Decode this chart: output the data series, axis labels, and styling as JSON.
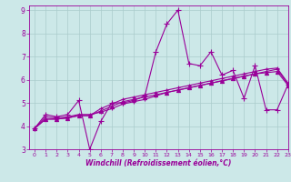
{
  "xlabel": "Windchill (Refroidissement éolien,°C)",
  "ylabel": "",
  "bg_color": "#cce8e8",
  "line_color": "#990099",
  "grid_color": "#aacccc",
  "xlim": [
    -0.5,
    23
  ],
  "ylim": [
    3,
    9.2
  ],
  "xticks": [
    0,
    1,
    2,
    3,
    4,
    5,
    6,
    7,
    8,
    9,
    10,
    11,
    12,
    13,
    14,
    15,
    16,
    17,
    18,
    19,
    20,
    21,
    22,
    23
  ],
  "yticks": [
    3,
    4,
    5,
    6,
    7,
    8,
    9
  ],
  "lines": [
    [
      3.9,
      4.5,
      4.4,
      4.5,
      5.1,
      3.0,
      4.2,
      5.0,
      5.0,
      5.1,
      5.3,
      7.2,
      8.4,
      9.0,
      6.7,
      6.6,
      7.2,
      6.2,
      6.4,
      5.2,
      6.6,
      4.7,
      4.7,
      5.8
    ],
    [
      3.9,
      4.4,
      4.35,
      4.4,
      4.5,
      4.5,
      4.6,
      4.75,
      4.95,
      5.05,
      5.15,
      5.3,
      5.45,
      5.55,
      5.65,
      5.75,
      5.85,
      5.95,
      6.05,
      6.15,
      6.25,
      6.35,
      6.45,
      5.8
    ],
    [
      3.9,
      4.3,
      4.3,
      4.35,
      4.45,
      4.45,
      4.65,
      4.85,
      5.05,
      5.15,
      5.25,
      5.35,
      5.45,
      5.55,
      5.65,
      5.75,
      5.85,
      5.95,
      6.05,
      6.15,
      6.25,
      6.3,
      6.35,
      5.75
    ],
    [
      3.9,
      4.3,
      4.3,
      4.35,
      4.45,
      4.45,
      4.75,
      4.95,
      5.15,
      5.25,
      5.35,
      5.45,
      5.55,
      5.65,
      5.75,
      5.85,
      5.95,
      6.05,
      6.15,
      6.25,
      6.35,
      6.45,
      6.5,
      5.85
    ]
  ]
}
